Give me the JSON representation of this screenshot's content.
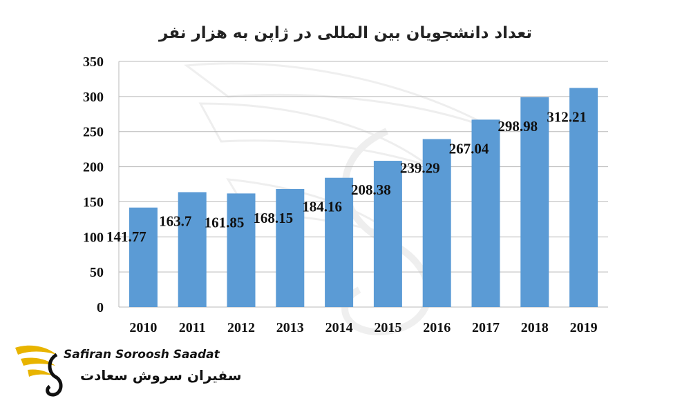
{
  "chart_data": {
    "type": "bar",
    "title": "تعداد دانشجویان بین المللی در ژاپن به هزار نفر",
    "categories": [
      "2010",
      "2011",
      "2012",
      "2013",
      "2014",
      "2015",
      "2016",
      "2017",
      "2018",
      "2019"
    ],
    "values": [
      141.77,
      163.7,
      161.85,
      168.15,
      184.16,
      208.38,
      239.29,
      267.04,
      298.98,
      312.21
    ],
    "value_labels": [
      "141.77",
      "163.7",
      "161.85",
      "168.15",
      "184.16",
      "208.38",
      "239.29",
      "267.04",
      "298.98",
      "312.21"
    ],
    "yticks": [
      "0",
      "50",
      "100",
      "150",
      "200",
      "250",
      "300",
      "350"
    ],
    "ylim": [
      0,
      350
    ],
    "xlabel": "",
    "ylabel": "",
    "grid": true,
    "bar_color": "#5b9bd5",
    "grid_color": "#b8b8b8"
  },
  "logo": {
    "name_en": "Safiran Soroosh Saadat",
    "name_fa": "سفیران سروش سعادت",
    "colors": {
      "gold": "#e8b400",
      "dark": "#111111"
    }
  }
}
